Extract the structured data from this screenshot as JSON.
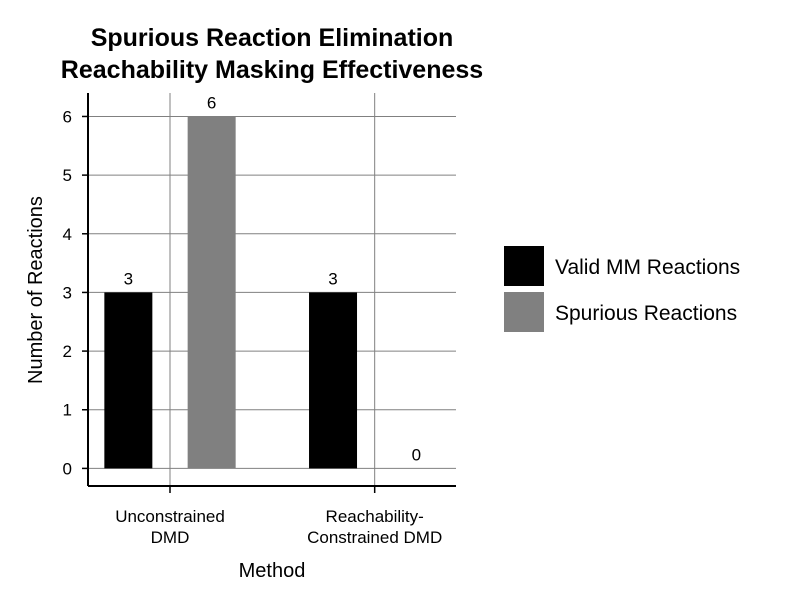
{
  "chart_data": {
    "type": "bar",
    "title": [
      "Spurious Reaction Elimination",
      "Reachability Masking Effectiveness"
    ],
    "xlabel": "Method",
    "ylabel": "Number of Reactions",
    "categories": [
      [
        "Unconstrained",
        "DMD"
      ],
      [
        "Reachability-",
        "Constrained DMD"
      ]
    ],
    "series": [
      {
        "name": "Valid MM Reactions",
        "color": "#000000",
        "values": [
          3,
          3
        ]
      },
      {
        "name": "Spurious Reactions",
        "color": "#808080",
        "values": [
          6,
          0
        ]
      }
    ],
    "data_labels": [
      [
        "3",
        "6"
      ],
      [
        "3",
        "0"
      ]
    ],
    "yticks": [
      0,
      1,
      2,
      3,
      4,
      5,
      6
    ],
    "ylim": [
      -0.3,
      6.4
    ],
    "grid": true,
    "legend_position": "right"
  }
}
